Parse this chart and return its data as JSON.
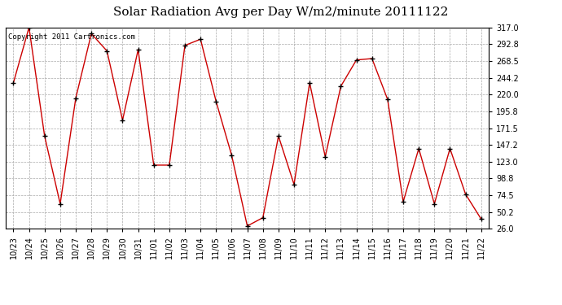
{
  "title": "Solar Radiation Avg per Day W/m2/minute 20111122",
  "copyright_text": "Copyright 2011 Cartronics.com",
  "dates": [
    "10/23",
    "10/24",
    "10/25",
    "10/26",
    "10/27",
    "10/28",
    "10/29",
    "10/30",
    "10/31",
    "11/01",
    "11/02",
    "11/03",
    "11/04",
    "11/05",
    "11/06",
    "11/07",
    "11/08",
    "11/09",
    "11/10",
    "11/11",
    "11/12",
    "11/13",
    "11/14",
    "11/15",
    "11/16",
    "11/17",
    "11/18",
    "11/19",
    "11/20",
    "11/21",
    "11/22"
  ],
  "values": [
    237,
    317,
    160,
    62,
    215,
    308,
    283,
    183,
    285,
    118,
    118,
    291,
    300,
    210,
    132,
    30,
    42,
    160,
    90,
    237,
    130,
    232,
    270,
    272,
    213,
    65,
    142,
    62,
    142,
    76,
    40
  ],
  "line_color": "#cc0000",
  "marker_color": "#000000",
  "bg_color": "#ffffff",
  "plot_bg_color": "#ffffff",
  "grid_color": "#aaaaaa",
  "ymin": 26.0,
  "ymax": 317.0,
  "yticks": [
    26.0,
    50.2,
    74.5,
    98.8,
    123.0,
    147.2,
    171.5,
    195.8,
    220.0,
    244.2,
    268.5,
    292.8,
    317.0
  ],
  "title_fontsize": 11,
  "copyright_fontsize": 6.5,
  "tick_fontsize": 7,
  "marker_size": 4
}
